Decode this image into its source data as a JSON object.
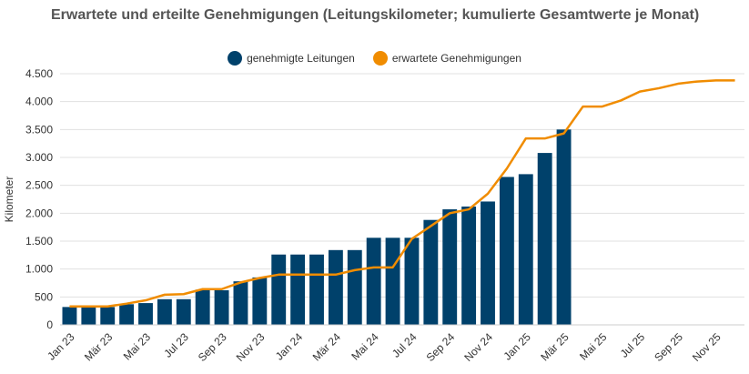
{
  "chart_data": {
    "type": "bar",
    "title": "Erwartete und erteilte Genehmigungen (Leitungskilometer; kumulierte Gesamtwerte je Monat)",
    "ylabel": "Kilometer",
    "xlabel": "",
    "ylim": [
      0,
      4500
    ],
    "yticks": [
      0,
      500,
      1000,
      1500,
      2000,
      2500,
      3000,
      3500,
      4000,
      4500
    ],
    "ytick_labels": [
      "0",
      "500",
      "1.000",
      "1.500",
      "2.000",
      "2.500",
      "3.000",
      "3.500",
      "4.000",
      "4.500"
    ],
    "grid": true,
    "legend_position": "top-center",
    "categories": [
      "Jan 23",
      "Feb 23",
      "Mär 23",
      "Apr 23",
      "Mai 23",
      "Jun 23",
      "Jul 23",
      "Aug 23",
      "Sep 23",
      "Okt 23",
      "Nov 23",
      "Dez 23",
      "Jan 24",
      "Feb 24",
      "Mär 24",
      "Apr 24",
      "Mai 24",
      "Jun 24",
      "Jul 24",
      "Aug 24",
      "Sep 24",
      "Okt 24",
      "Nov 24",
      "Dez 24",
      "Jan 25",
      "Feb 25",
      "Mär 25",
      "Apr 25",
      "Mai 25",
      "Jun 25",
      "Jul 25",
      "Aug 25",
      "Sep 25",
      "Okt 25",
      "Nov 25",
      "Dez 25"
    ],
    "xtick_labels": [
      "Jan 23",
      "Mär 23",
      "Mai 23",
      "Jul 23",
      "Sep 23",
      "Nov 23",
      "Jan 24",
      "Mär 24",
      "Mai 24",
      "Jul 24",
      "Sep 24",
      "Nov 24",
      "Jan 25",
      "Mär 25",
      "Mai 25",
      "Jul 25",
      "Sep 25",
      "Nov 25"
    ],
    "series": [
      {
        "name": "genehmigte Leitungen",
        "type": "bar",
        "color": "#00416b",
        "values": [
          320,
          320,
          320,
          370,
          390,
          460,
          460,
          630,
          620,
          780,
          850,
          1260,
          1260,
          1260,
          1340,
          1340,
          1560,
          1560,
          1560,
          1880,
          2070,
          2120,
          2210,
          2650,
          2700,
          3080,
          3500,
          null,
          null,
          null,
          null,
          null,
          null,
          null,
          null,
          null
        ]
      },
      {
        "name": "erwartete Genehmigungen",
        "type": "line",
        "color": "#f08c00",
        "values": [
          330,
          330,
          330,
          380,
          440,
          540,
          550,
          640,
          640,
          760,
          840,
          900,
          900,
          900,
          900,
          980,
          1030,
          1030,
          1540,
          1770,
          2000,
          2070,
          2350,
          2800,
          3340,
          3340,
          3430,
          3910,
          3910,
          4020,
          4180,
          4240,
          4320,
          4360,
          4380,
          4380
        ]
      }
    ]
  }
}
